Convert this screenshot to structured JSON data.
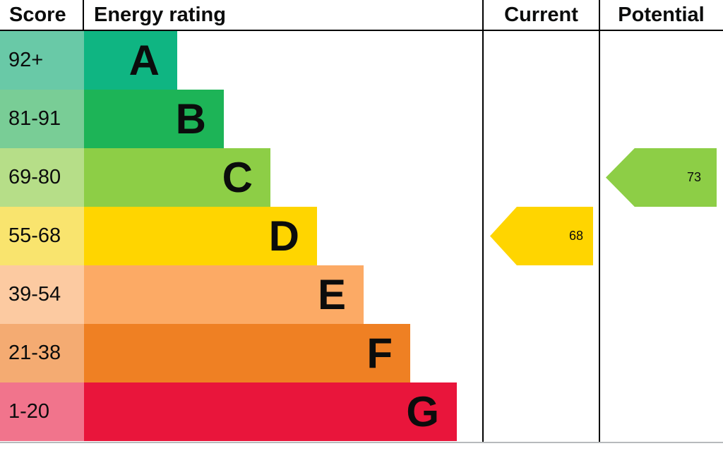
{
  "chart_data": {
    "type": "bar",
    "title": "Energy rating",
    "columns": {
      "score": "Score",
      "energy_rating": "Energy rating",
      "current": "Current",
      "potential": "Potential"
    },
    "bands": [
      {
        "letter": "A",
        "score_range": "92+",
        "color": "#0fb582",
        "score_cell_color": "#69c9a7"
      },
      {
        "letter": "B",
        "score_range": "81-91",
        "color": "#1db457",
        "score_cell_color": "#79cd96"
      },
      {
        "letter": "C",
        "score_range": "69-80",
        "color": "#8dce46",
        "score_cell_color": "#b6de88"
      },
      {
        "letter": "D",
        "score_range": "55-68",
        "color": "#ffd500",
        "score_cell_color": "#f9e46e"
      },
      {
        "letter": "E",
        "score_range": "39-54",
        "color": "#fcaa65",
        "score_cell_color": "#fccaa1"
      },
      {
        "letter": "F",
        "score_range": "21-38",
        "color": "#ef8023",
        "score_cell_color": "#f4ab72"
      },
      {
        "letter": "G",
        "score_range": "1-20",
        "color": "#e9153b",
        "score_cell_color": "#f1748c"
      }
    ],
    "current": {
      "value": 68,
      "band": "D",
      "color": "#ffd500"
    },
    "potential": {
      "value": 73,
      "band": "C",
      "color": "#8dce46"
    },
    "legend_position": "none",
    "grid": false
  }
}
